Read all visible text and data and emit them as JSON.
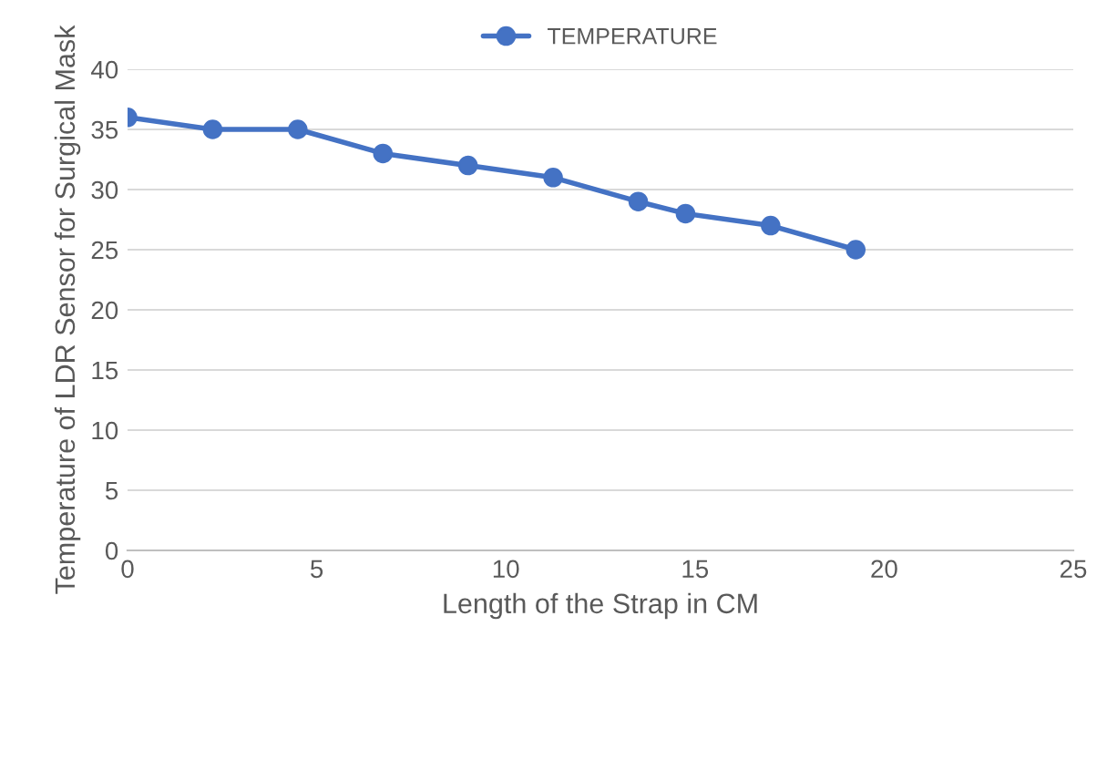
{
  "chart_data": {
    "type": "line",
    "xlabel": "Length of the Strap in CM",
    "ylabel": "Temperature of LDR Sensor for Surgical Mask",
    "x": [
      0,
      2.25,
      4.5,
      6.75,
      9,
      11.25,
      13.5,
      14.75,
      17,
      19.25
    ],
    "series": [
      {
        "name": "TEMPERATURE",
        "color": "#4472c4",
        "values": [
          36,
          35,
          35,
          33,
          32,
          31,
          29,
          28,
          27,
          25
        ]
      }
    ],
    "xlim": [
      0,
      25
    ],
    "xticks": [
      0,
      5,
      10,
      15,
      20,
      25
    ],
    "ylim": [
      0,
      40
    ],
    "yticks": [
      0,
      5,
      10,
      15,
      20,
      25,
      30,
      35,
      40
    ],
    "grid": "y",
    "legend": "top",
    "marker": "circle",
    "line_style": "solid"
  }
}
